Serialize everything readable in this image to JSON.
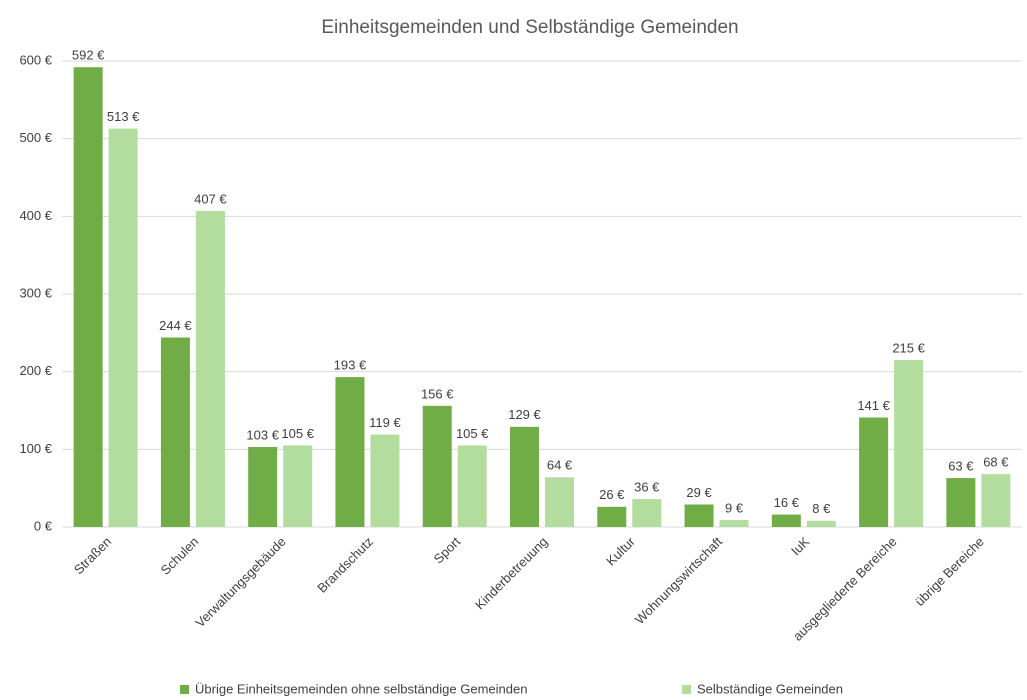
{
  "chart_data": {
    "type": "bar",
    "title": "Einheitsgemeinden und Selbständige Gemeinden",
    "categories": [
      "Straßen",
      "Schulen",
      "Verwaltungsgebäude",
      "Brandschutz",
      "Sport",
      "Kinderbetreuung",
      "Kultur",
      "Wohnungswirtschaft",
      "IuK",
      "ausgegliederte Bereiche",
      "übrige Bereiche"
    ],
    "series": [
      {
        "name": "Übrige Einheitsgemeinden ohne selbständige Gemeinden",
        "color": "#70ad47",
        "values": [
          592,
          244,
          103,
          193,
          156,
          129,
          26,
          29,
          16,
          141,
          63
        ],
        "value_labels": [
          "592 €",
          "244 €",
          "103 €",
          "193 €",
          "156 €",
          "129 €",
          "26 €",
          "29 €",
          "16 €",
          "141 €",
          "63 €"
        ]
      },
      {
        "name": "Selbständige Gemeinden",
        "color": "#b3dd9f",
        "values": [
          513,
          407,
          105,
          119,
          105,
          64,
          36,
          9,
          8,
          215,
          68
        ],
        "value_labels": [
          "513 €",
          "407 €",
          "105 €",
          "119 €",
          "105 €",
          "64 €",
          "36 €",
          "9 €",
          "8 €",
          "215 €",
          "68 €"
        ]
      }
    ],
    "ylim": [
      0,
      600
    ],
    "yticks": [
      {
        "value": 0,
        "label": "0 €"
      },
      {
        "value": 100,
        "label": "100 €"
      },
      {
        "value": 200,
        "label": "200 €"
      },
      {
        "value": 300,
        "label": "300 €"
      },
      {
        "value": 400,
        "label": "400 €"
      },
      {
        "value": 500,
        "label": "500 €"
      },
      {
        "value": 600,
        "label": "600 €"
      }
    ],
    "grid": true,
    "legend": "bottom"
  }
}
